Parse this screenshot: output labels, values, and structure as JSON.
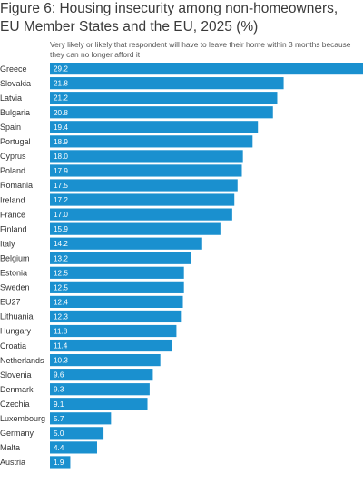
{
  "header": {
    "title": "Figure 6: Housing insecurity among non-homeowners, EU Member States and the EU, 2025 (%)",
    "subtitle": "Very likely or likely that respondent will have to leave their home within 3 months because they can no longer afford it"
  },
  "colors": {
    "bar": "#1a90cf",
    "value_text": "#ffffff",
    "label_text": "#333333"
  },
  "chart_data": {
    "type": "bar",
    "orientation": "horizontal",
    "title": "Figure 6: Housing insecurity among non-homeowners, EU Member States and the EU, 2025 (%)",
    "subtitle": "Very likely or likely that respondent will have to leave their home within 3 months because they can no longer afford it",
    "xlabel": "",
    "ylabel": "",
    "xlim": [
      0,
      29.2
    ],
    "grid": false,
    "legend": "none",
    "categories": [
      "Greece",
      "Slovakia",
      "Latvia",
      "Bulgaria",
      "Spain",
      "Portugal",
      "Cyprus",
      "Poland",
      "Romania",
      "Ireland",
      "France",
      "Finland",
      "Italy",
      "Belgium",
      "Estonia",
      "Sweden",
      "EU27",
      "Lithuania",
      "Hungary",
      "Croatia",
      "Netherlands",
      "Slovenia",
      "Denmark",
      "Czechia",
      "Luxembourg",
      "Germany",
      "Malta",
      "Austria"
    ],
    "values": [
      29.2,
      21.8,
      21.2,
      20.8,
      19.4,
      18.9,
      18.0,
      17.9,
      17.5,
      17.2,
      17.0,
      15.9,
      14.2,
      13.2,
      12.5,
      12.5,
      12.4,
      12.3,
      11.8,
      11.4,
      10.3,
      9.6,
      9.3,
      9.1,
      5.7,
      5.0,
      4.4,
      1.9
    ],
    "value_labels": [
      "29.2",
      "21.8",
      "21.2",
      "20.8",
      "19.4",
      "18.9",
      "18.0",
      "17.9",
      "17.5",
      "17.2",
      "17.0",
      "15.9",
      "14.2",
      "13.2",
      "12.5",
      "12.5",
      "12.4",
      "12.3",
      "11.8",
      "11.4",
      "10.3",
      "9.6",
      "9.3",
      "9.1",
      "5.7",
      "5.0",
      "4.4",
      "1.9"
    ]
  }
}
